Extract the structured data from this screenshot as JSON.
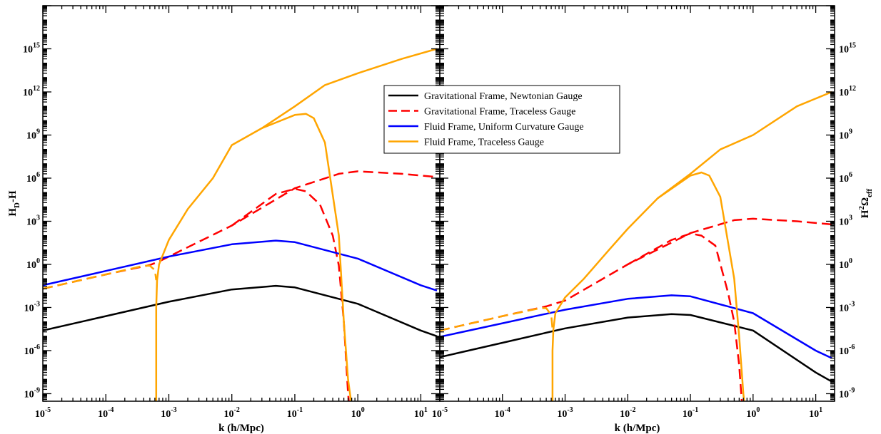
{
  "chart_data": [
    {
      "type": "line",
      "panel": "left",
      "xlabel": "k (h/Mpc)",
      "ylabel": "H_D-H",
      "x_scale": "log",
      "y_scale": "log",
      "xlim": [
        1e-05,
        20
      ],
      "ylim": [
        3e-10,
        1e+18
      ],
      "x_ticks": [
        1e-05,
        0.0001,
        0.001,
        0.01,
        0.1,
        1,
        10
      ],
      "x_tick_labels": [
        {
          "base": "10",
          "exp": "-5"
        },
        {
          "base": "10",
          "exp": "-4"
        },
        {
          "base": "10",
          "exp": "-3"
        },
        {
          "base": "10",
          "exp": "-2"
        },
        {
          "base": "10",
          "exp": "-1"
        },
        {
          "base": "10",
          "exp": "0"
        },
        {
          "base": "10",
          "exp": "1"
        }
      ],
      "y_ticks": [
        1e-09,
        1e-06,
        0.001,
        1,
        1000,
        1000000,
        1000000000,
        1000000000000,
        1000000000000000
      ],
      "y_tick_labels": [
        {
          "base": "10",
          "exp": "-9"
        },
        {
          "base": "10",
          "exp": "-6"
        },
        {
          "base": "10",
          "exp": "-3"
        },
        {
          "base": "10",
          "exp": "0"
        },
        {
          "base": "10",
          "exp": "3"
        },
        {
          "base": "10",
          "exp": "6"
        },
        {
          "base": "10",
          "exp": "9"
        },
        {
          "base": "10",
          "exp": "12"
        },
        {
          "base": "10",
          "exp": "15"
        }
      ],
      "series": [
        {
          "name": "Gravitational Frame, Newtonian Gauge",
          "color": "#000000",
          "dash": "solid",
          "points": [
            [
              1e-05,
              2.5e-05
            ],
            [
              0.0001,
              0.00025
            ],
            [
              0.001,
              0.0025
            ],
            [
              0.01,
              0.018
            ],
            [
              0.05,
              0.032
            ],
            [
              0.1,
              0.025
            ],
            [
              1,
              0.0018
            ],
            [
              10,
              2.5e-05
            ],
            [
              18,
              1e-05
            ]
          ]
        },
        {
          "name": "Gravitational Frame, Traceless Gauge",
          "color": "#ff0000",
          "dash": "dashed",
          "points": [
            [
              1e-05,
              0.02
            ],
            [
              0.0001,
              0.2
            ],
            [
              0.0005,
              0.9
            ],
            [
              0.0007,
              1.6
            ],
            [
              0.001,
              3.5
            ],
            [
              0.01,
              500
            ],
            [
              0.1,
              200000
            ],
            [
              0.5,
              2000000
            ],
            [
              1,
              3000000
            ],
            [
              5,
              2000000
            ],
            [
              18,
              1200000
            ]
          ]
        },
        {
          "name": "Gravitational Frame, Traceless Gauge",
          "color": "#ff0000",
          "dash": "dashed",
          "points": [
            [
              0.01,
              500
            ],
            [
              0.05,
              80000
            ],
            [
              0.1,
              180000
            ],
            [
              0.15,
              120000
            ],
            [
              0.25,
              15000
            ],
            [
              0.4,
              100
            ],
            [
              0.5,
              0.8
            ],
            [
              0.6,
              0.0001
            ],
            [
              0.7,
              1e-09
            ],
            [
              0.72,
              3e-10
            ]
          ]
        },
        {
          "name": "Fluid Frame, Uniform Curvature Gauge",
          "color": "#0000ff",
          "dash": "solid",
          "points": [
            [
              1e-05,
              0.035
            ],
            [
              0.0001,
              0.35
            ],
            [
              0.001,
              3.5
            ],
            [
              0.01,
              25
            ],
            [
              0.05,
              45
            ],
            [
              0.1,
              35
            ],
            [
              1,
              2.5
            ],
            [
              10,
              0.035
            ],
            [
              18,
              0.015
            ]
          ]
        },
        {
          "name": "Fluid Frame, Traceless Gauge",
          "color": "#ffa500",
          "dash": "dashed",
          "points": [
            [
              1e-05,
              0.02
            ],
            [
              0.0001,
              0.2
            ],
            [
              0.0004,
              0.8
            ],
            [
              0.0005,
              0.8
            ],
            [
              0.0006,
              0.4
            ],
            [
              0.00063,
              0.08
            ]
          ]
        },
        {
          "name": "Fluid Frame, Traceless Gauge",
          "color": "#ffa500",
          "dash": "solid",
          "points": [
            [
              0.00063,
              3e-10
            ],
            [
              0.00063,
              0.001
            ],
            [
              0.00065,
              0.08
            ],
            [
              0.0007,
              1
            ],
            [
              0.001,
              50
            ],
            [
              0.002,
              7000
            ],
            [
              0.005,
              1000000
            ],
            [
              0.01,
              200000000
            ],
            [
              0.03,
              3000000000
            ],
            [
              0.1,
              100000000000
            ],
            [
              0.3,
              3000000000000
            ],
            [
              1,
              20000000000000
            ],
            [
              5,
              200000000000000
            ],
            [
              18,
              1000000000000000
            ]
          ]
        },
        {
          "name": "Fluid Frame, Traceless Gauge",
          "color": "#ffa500",
          "dash": "solid",
          "points": [
            [
              0.03,
              3000000000
            ],
            [
              0.1,
              25000000000
            ],
            [
              0.15,
              30000000000
            ],
            [
              0.2,
              15000000000
            ],
            [
              0.3,
              300000000
            ],
            [
              0.5,
              100
            ],
            [
              0.6,
              0.0001
            ],
            [
              0.7,
              1e-08
            ],
            [
              0.78,
              3e-10
            ]
          ]
        }
      ]
    },
    {
      "type": "line",
      "panel": "right",
      "xlabel": "k (h/Mpc)",
      "ylabel": "H^2 Ω_eff",
      "x_scale": "log",
      "y_scale": "log",
      "xlim": [
        1e-05,
        20
      ],
      "ylim": [
        3e-10,
        1e+18
      ],
      "x_ticks": [
        1e-05,
        0.0001,
        0.001,
        0.01,
        0.1,
        1,
        10
      ],
      "x_tick_labels": [
        {
          "base": "10",
          "exp": "-5"
        },
        {
          "base": "10",
          "exp": "-4"
        },
        {
          "base": "10",
          "exp": "-3"
        },
        {
          "base": "10",
          "exp": "-2"
        },
        {
          "base": "10",
          "exp": "-1"
        },
        {
          "base": "10",
          "exp": "0"
        },
        {
          "base": "10",
          "exp": "1"
        }
      ],
      "y_ticks": [
        1e-09,
        1e-06,
        0.001,
        1,
        1000,
        1000000,
        1000000000,
        1000000000000,
        1000000000000000
      ],
      "y_tick_labels": [
        {
          "base": "10",
          "exp": "-9"
        },
        {
          "base": "10",
          "exp": "-6"
        },
        {
          "base": "10",
          "exp": "-3"
        },
        {
          "base": "10",
          "exp": "0"
        },
        {
          "base": "10",
          "exp": "3"
        },
        {
          "base": "10",
          "exp": "6"
        },
        {
          "base": "10",
          "exp": "9"
        },
        {
          "base": "10",
          "exp": "12"
        },
        {
          "base": "10",
          "exp": "15"
        }
      ],
      "series": [
        {
          "name": "Gravitational Frame, Newtonian Gauge",
          "color": "#000000",
          "dash": "solid",
          "points": [
            [
              1e-05,
              3.5e-07
            ],
            [
              0.0001,
              3.5e-06
            ],
            [
              0.001,
              3.5e-05
            ],
            [
              0.01,
              0.0002
            ],
            [
              0.05,
              0.00035
            ],
            [
              0.1,
              0.0003
            ],
            [
              1,
              2.5e-05
            ],
            [
              10,
              3e-08
            ],
            [
              18,
              7e-09
            ]
          ]
        },
        {
          "name": "Gravitational Frame, Traceless Gauge",
          "color": "#ff0000",
          "dash": "dashed",
          "points": [
            [
              1e-05,
              2.5e-05
            ],
            [
              0.0001,
              0.00025
            ],
            [
              0.0005,
              0.0012
            ],
            [
              0.001,
              0.003
            ],
            [
              0.01,
              1
            ],
            [
              0.1,
              150
            ],
            [
              0.5,
              1200
            ],
            [
              1,
              1500
            ],
            [
              5,
              1000
            ],
            [
              18,
              600
            ]
          ]
        },
        {
          "name": "Gravitational Frame, Traceless Gauge",
          "color": "#ff0000",
          "dash": "dashed",
          "points": [
            [
              0.01,
              1
            ],
            [
              0.05,
              50
            ],
            [
              0.1,
              140
            ],
            [
              0.15,
              100
            ],
            [
              0.25,
              20
            ],
            [
              0.4,
              0.01
            ],
            [
              0.5,
              0.0001
            ],
            [
              0.6,
              1e-07
            ],
            [
              0.66,
              3e-10
            ]
          ]
        },
        {
          "name": "Fluid Frame, Uniform Curvature Gauge",
          "color": "#0000ff",
          "dash": "solid",
          "points": [
            [
              1e-05,
              9e-06
            ],
            [
              0.0001,
              8e-05
            ],
            [
              0.001,
              0.0007
            ],
            [
              0.01,
              0.004
            ],
            [
              0.05,
              0.007
            ],
            [
              0.1,
              0.006
            ],
            [
              1,
              0.0004
            ],
            [
              10,
              1e-06
            ],
            [
              18,
              3e-07
            ]
          ]
        },
        {
          "name": "Fluid Frame, Traceless Gauge",
          "color": "#ffa500",
          "dash": "dashed",
          "points": [
            [
              1e-05,
              2.5e-05
            ],
            [
              0.0001,
              0.00025
            ],
            [
              0.0004,
              0.0009
            ],
            [
              0.0005,
              0.0009
            ],
            [
              0.0006,
              0.0003
            ],
            [
              0.00063,
              3e-05
            ]
          ]
        },
        {
          "name": "Fluid Frame, Traceless Gauge",
          "color": "#ffa500",
          "dash": "solid",
          "points": [
            [
              0.00063,
              3e-10
            ],
            [
              0.00063,
              1e-06
            ],
            [
              0.00065,
              3e-05
            ],
            [
              0.0007,
              0.0004
            ],
            [
              0.001,
              0.005
            ],
            [
              0.002,
              0.1
            ],
            [
              0.005,
              10
            ],
            [
              0.01,
              300
            ],
            [
              0.03,
              40000
            ],
            [
              0.1,
              2000000
            ],
            [
              0.3,
              100000000
            ],
            [
              1,
              1000000000
            ],
            [
              5,
              100000000000
            ],
            [
              18,
              1000000000000
            ]
          ]
        },
        {
          "name": "Fluid Frame, Traceless Gauge",
          "color": "#ffa500",
          "dash": "solid",
          "points": [
            [
              0.03,
              40000
            ],
            [
              0.1,
              1500000
            ],
            [
              0.15,
              2500000
            ],
            [
              0.2,
              1500000
            ],
            [
              0.3,
              50000
            ],
            [
              0.5,
              0.1
            ],
            [
              0.6,
              1e-05
            ],
            [
              0.7,
              1e-09
            ],
            [
              0.72,
              3e-10
            ]
          ]
        }
      ]
    }
  ],
  "legend": {
    "position": "top-center",
    "entries": [
      {
        "label": "Gravitational Frame, Newtonian Gauge",
        "color": "#000000",
        "dash": "solid"
      },
      {
        "label": "Gravitational Frame, Traceless Gauge",
        "color": "#ff0000",
        "dash": "dashed"
      },
      {
        "label": "Fluid Frame, Uniform Curvature Gauge",
        "color": "#0000ff",
        "dash": "solid"
      },
      {
        "label": "Fluid Frame, Traceless Gauge",
        "color": "#ffa500",
        "dash": "solid"
      }
    ]
  }
}
